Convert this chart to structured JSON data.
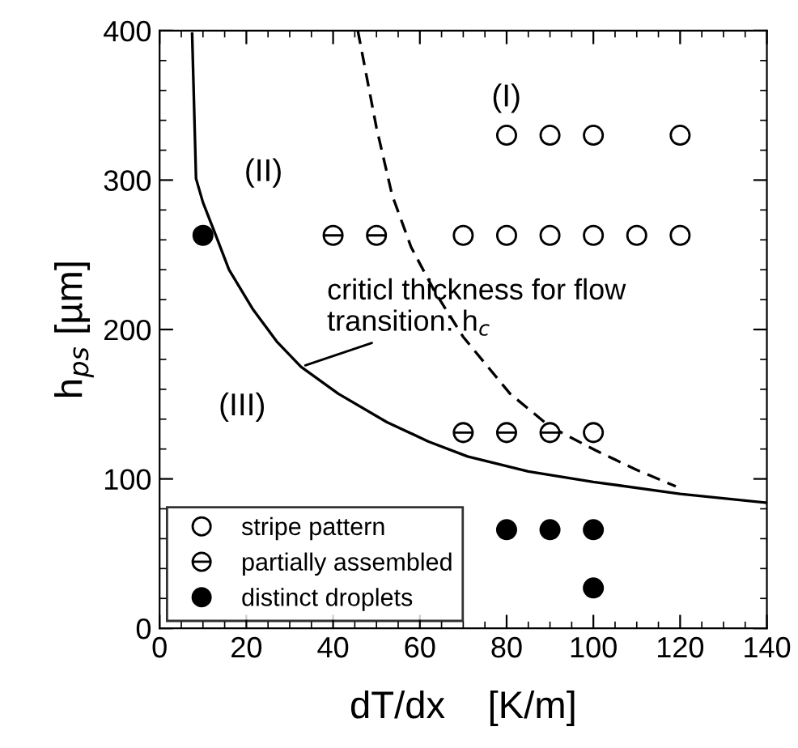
{
  "chart_data": {
    "type": "scatter",
    "xlabel": "dT/dx    [K/m]",
    "ylabel": "h$_{ps}$ [µm]",
    "xlim": [
      0,
      140
    ],
    "ylim": [
      0,
      400
    ],
    "xticks": [
      0,
      20,
      40,
      60,
      80,
      100,
      120,
      140
    ],
    "yticks": [
      0,
      100,
      200,
      300,
      400
    ],
    "grid": false,
    "legend": "bottom left",
    "series": [
      {
        "type": "line",
        "line_style": "solid",
        "marker": "none",
        "color": "#000000",
        "x": [
          7.5,
          8.4,
          10,
          12.7,
          16,
          21.4,
          27,
          32.6,
          41.2,
          52.4,
          62,
          71,
          85,
          100,
          120,
          140
        ],
        "values": [
          398,
          301,
          285,
          265,
          240,
          214,
          192,
          175,
          157,
          138,
          125,
          115,
          105,
          98,
          90,
          84
        ]
      },
      {
        "type": "line",
        "line_style": "dashed",
        "marker": "none",
        "color": "#000000",
        "x": [
          45.7,
          50,
          53.6,
          58,
          63.5,
          70,
          80.8,
          90,
          100.6,
          110,
          119
        ],
        "values": [
          400,
          335,
          290,
          255,
          225,
          195,
          157,
          135,
          119,
          106,
          95
        ]
      },
      {
        "name": "stripe pattern",
        "marker": "circle",
        "color": "#ffffff",
        "x": [
          80,
          90,
          100,
          120,
          70,
          80,
          90,
          100,
          110,
          120,
          100
        ],
        "values": [
          330,
          330,
          330,
          330,
          263,
          263,
          263,
          263,
          263,
          263,
          131
        ]
      },
      {
        "name": "partially assembled",
        "marker": "cross",
        "color": "#ffffff",
        "x": [
          40,
          50,
          70,
          80,
          90
        ],
        "values": [
          263,
          263,
          131,
          131,
          131
        ]
      },
      {
        "name": "distinct droplets",
        "marker": "circle",
        "color": "#000000",
        "x": [
          10,
          80,
          90,
          100,
          100
        ],
        "values": [
          263,
          66,
          66,
          66,
          27
        ]
      }
    ],
    "annotations": [
      "(I)",
      "(II)",
      "(III)",
      {
        "text": "criticl thickness for flow\ntransition: h$_{c}$",
        "x": 32.6,
        "y": 175
      }
    ]
  }
}
